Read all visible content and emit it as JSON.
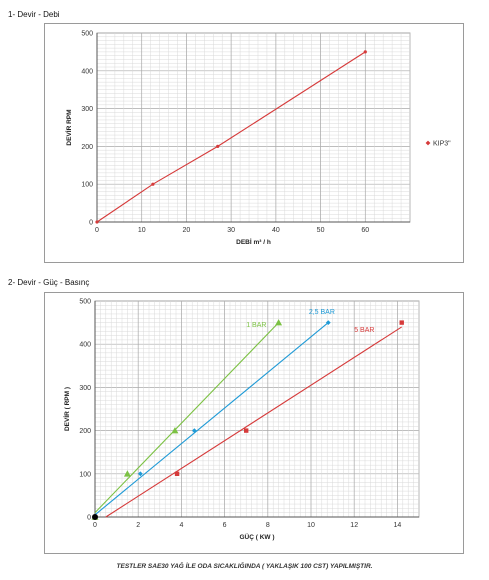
{
  "section1_title": "1- Devir - Debi",
  "section2_title": "2- Devir - Güç - Basınç",
  "footer_note": "TESTLER SAE30 YAĞ İLE ODA SICAKLIĞINDA ( YAKLAŞIK 100 CST) YAPILMIŞTIR.",
  "chart_data": [
    {
      "type": "line",
      "xlabel": "DEBİ m³ / h",
      "ylabel": "DEVİR RPM",
      "xlim": [
        0,
        70
      ],
      "ylim": [
        0,
        500
      ],
      "xticks": [
        0,
        10,
        20,
        30,
        40,
        50,
        60
      ],
      "yticks": [
        0,
        100,
        200,
        300,
        400,
        500
      ],
      "grid": true,
      "legend_position": "right",
      "series": [
        {
          "name": "KIP3\"",
          "color": "#d63a3a",
          "marker": "dot",
          "x": [
            0,
            12.5,
            27,
            60
          ],
          "y": [
            0,
            100,
            200,
            450
          ]
        }
      ]
    },
    {
      "type": "line",
      "xlabel": "GÜÇ ( KW )",
      "ylabel": "DEVİR ( RPM )",
      "xlim": [
        0,
        15
      ],
      "ylim": [
        0,
        500
      ],
      "xticks": [
        0,
        2,
        4,
        6,
        8,
        10,
        12,
        14
      ],
      "yticks": [
        0,
        100,
        200,
        300,
        400,
        500
      ],
      "grid": true,
      "legend_position": "none",
      "series": [
        {
          "name": "1 BAR",
          "color": "#7bc143",
          "marker": "triangle",
          "x": [
            0,
            1.5,
            3.7,
            8.5
          ],
          "y": [
            0,
            100,
            200,
            450
          ],
          "fit": [
            [
              0,
              10
            ],
            [
              8.5,
              450
            ]
          ]
        },
        {
          "name": "2,5 BAR",
          "color": "#1f9ad6",
          "marker": "diamond",
          "x": [
            0,
            2.1,
            4.6,
            10.8
          ],
          "y": [
            0,
            100,
            200,
            450
          ],
          "fit": [
            [
              0,
              5
            ],
            [
              10.8,
              450
            ]
          ]
        },
        {
          "name": "5 BAR",
          "color": "#d63a3a",
          "marker": "square",
          "x": [
            0,
            3.8,
            7,
            14.2
          ],
          "y": [
            0,
            100,
            200,
            450
          ],
          "fit": [
            [
              0.5,
              0
            ],
            [
              14.2,
              440
            ]
          ]
        }
      ]
    }
  ]
}
